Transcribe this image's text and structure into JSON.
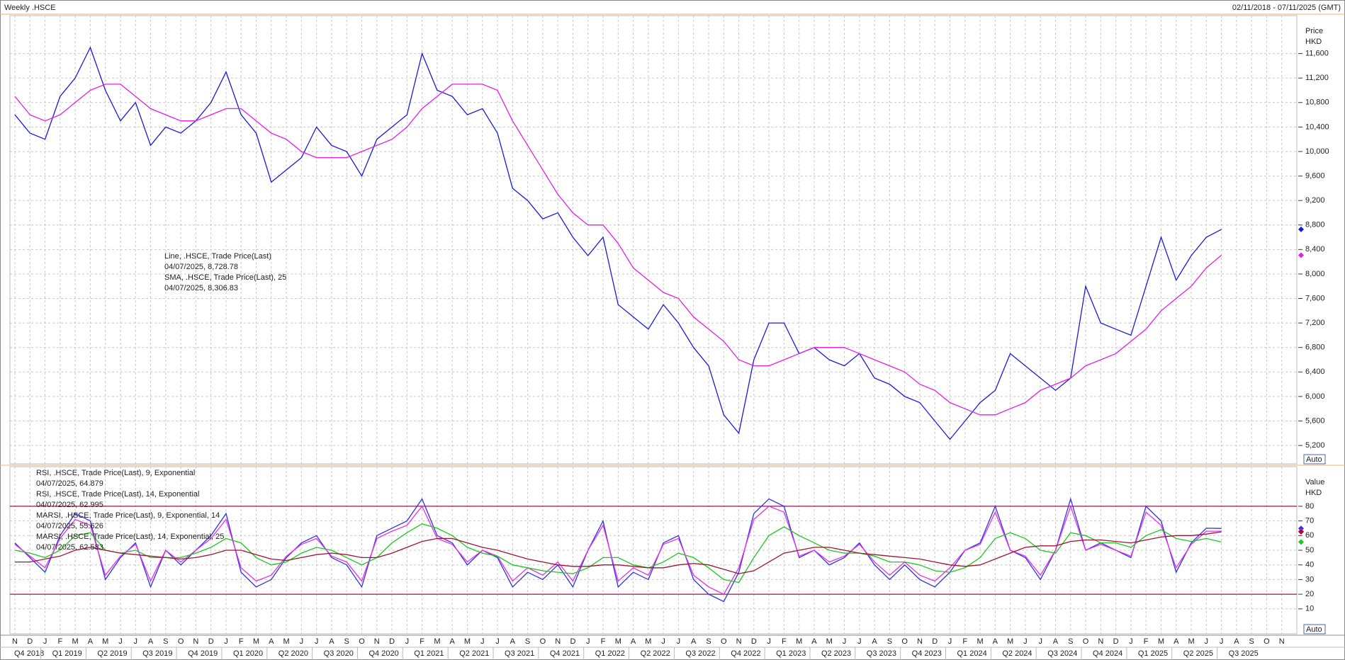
{
  "header": {
    "title": "Weekly .HSCE",
    "range": "02/11/2018 - 07/11/2025 (GMT)"
  },
  "x_axis": {
    "months": [
      "N",
      "D",
      "J",
      "F",
      "M",
      "A",
      "M",
      "J",
      "J",
      "A",
      "S",
      "O",
      "N",
      "D",
      "J",
      "F",
      "M",
      "A",
      "M",
      "J",
      "J",
      "A",
      "S",
      "O",
      "N",
      "D",
      "J",
      "F",
      "M",
      "A",
      "M",
      "J",
      "J",
      "A",
      "S",
      "O",
      "N",
      "D",
      "J",
      "F",
      "M",
      "A",
      "M",
      "J",
      "J",
      "A",
      "S",
      "O",
      "N",
      "D",
      "J",
      "F",
      "M",
      "A",
      "M",
      "J",
      "J",
      "A",
      "S",
      "O",
      "N",
      "D",
      "J",
      "F",
      "M",
      "A",
      "M",
      "J",
      "J",
      "A",
      "S",
      "O",
      "N",
      "D",
      "J",
      "F",
      "M",
      "A",
      "M",
      "J",
      "J",
      "A",
      "S",
      "O",
      "N"
    ],
    "quarters": [
      "Q4 2018",
      "Q1 2019",
      "Q2 2019",
      "Q3 2019",
      "Q4 2019",
      "Q1 2020",
      "Q2 2020",
      "Q3 2020",
      "Q4 2020",
      "Q1 2021",
      "Q2 2021",
      "Q3 2021",
      "Q4 2021",
      "Q1 2022",
      "Q2 2022",
      "Q3 2022",
      "Q4 2022",
      "Q1 2023",
      "Q2 2023",
      "Q3 2023",
      "Q4 2023",
      "Q1 2024",
      "Q2 2024",
      "Q3 2024",
      "Q4 2024",
      "Q1 2025",
      "Q2 2025",
      "Q3 2025"
    ]
  },
  "chart_data": [
    {
      "type": "line",
      "axis_label": [
        "Price",
        "HKD"
      ],
      "button": "Auto",
      "grid": true,
      "xlim": [
        "2018-11",
        "2025-12"
      ],
      "ylim": [
        4900,
        12220
      ],
      "yticks": [
        {
          "value": 5200,
          "label": "5,200"
        },
        {
          "value": 5600,
          "label": "5,600"
        },
        {
          "value": 6000,
          "label": "6,000"
        },
        {
          "value": 6400,
          "label": "6,400"
        },
        {
          "value": 6800,
          "label": "6,800"
        },
        {
          "value": 7200,
          "label": "7,200"
        },
        {
          "value": 7600,
          "label": "7,600"
        },
        {
          "value": 8000,
          "label": "8,000"
        },
        {
          "value": 8400,
          "label": "8,400"
        },
        {
          "value": 8800,
          "label": "8,800"
        },
        {
          "value": 9200,
          "label": "9,200"
        },
        {
          "value": 9600,
          "label": "9,600"
        },
        {
          "value": 10000,
          "label": "10,000"
        },
        {
          "value": 10400,
          "label": "10,400"
        },
        {
          "value": 10800,
          "label": "10,800"
        },
        {
          "value": 11200,
          "label": "11,200"
        },
        {
          "value": 11600,
          "label": "11,600"
        }
      ],
      "x": [
        "2018-11",
        "2018-12",
        "2019-01",
        "2019-02",
        "2019-03",
        "2019-04",
        "2019-05",
        "2019-06",
        "2019-07",
        "2019-08",
        "2019-09",
        "2019-10",
        "2019-11",
        "2019-12",
        "2020-01",
        "2020-02",
        "2020-03",
        "2020-04",
        "2020-05",
        "2020-06",
        "2020-07",
        "2020-08",
        "2020-09",
        "2020-10",
        "2020-11",
        "2020-12",
        "2021-01",
        "2021-02",
        "2021-03",
        "2021-04",
        "2021-05",
        "2021-06",
        "2021-07",
        "2021-08",
        "2021-09",
        "2021-10",
        "2021-11",
        "2021-12",
        "2022-01",
        "2022-02",
        "2022-03",
        "2022-04",
        "2022-05",
        "2022-06",
        "2022-07",
        "2022-08",
        "2022-09",
        "2022-10",
        "2022-11",
        "2022-12",
        "2023-01",
        "2023-02",
        "2023-03",
        "2023-04",
        "2023-05",
        "2023-06",
        "2023-07",
        "2023-08",
        "2023-09",
        "2023-10",
        "2023-11",
        "2023-12",
        "2024-01",
        "2024-02",
        "2024-03",
        "2024-04",
        "2024-05",
        "2024-06",
        "2024-07",
        "2024-08",
        "2024-09",
        "2024-10",
        "2024-11",
        "2024-12",
        "2025-01",
        "2025-02",
        "2025-03",
        "2025-04",
        "2025-05",
        "2025-06",
        "2025-07"
      ],
      "series": [
        {
          "name": "Line, .HSCE, Trade Price(Last)",
          "legend_value": "04/07/2025, 8,728.78",
          "color": "#1a1adb",
          "values": [
            10600,
            10300,
            10200,
            10900,
            11200,
            11700,
            11000,
            10500,
            10800,
            10100,
            10400,
            10300,
            10500,
            10800,
            11300,
            10600,
            10300,
            9500,
            9700,
            9900,
            10400,
            10100,
            10000,
            9600,
            10200,
            10400,
            10600,
            11600,
            11000,
            10900,
            10600,
            10700,
            10300,
            9400,
            9200,
            8900,
            9000,
            8600,
            8300,
            8600,
            7500,
            7300,
            7100,
            7500,
            7200,
            6800,
            6500,
            5700,
            5400,
            6600,
            7200,
            7200,
            6700,
            6800,
            6600,
            6500,
            6700,
            6300,
            6200,
            6000,
            5900,
            5600,
            5300,
            5600,
            5900,
            6100,
            6700,
            6500,
            6300,
            6100,
            6300,
            7800,
            7200,
            7100,
            7000,
            7800,
            8600,
            7900,
            8300,
            8600,
            8728.78
          ]
        },
        {
          "name": "SMA, .HSCE, Trade Price(Last),  25",
          "legend_value": "04/07/2025, 8,306.83",
          "color": "#e61ee6",
          "values": [
            10900,
            10600,
            10500,
            10600,
            10800,
            11000,
            11100,
            11100,
            10900,
            10700,
            10600,
            10500,
            10500,
            10600,
            10700,
            10700,
            10500,
            10300,
            10200,
            10000,
            9900,
            9900,
            9900,
            10000,
            10100,
            10200,
            10400,
            10700,
            10900,
            11100,
            11100,
            11100,
            11000,
            10500,
            10100,
            9700,
            9300,
            9000,
            8800,
            8800,
            8500,
            8100,
            7900,
            7700,
            7600,
            7300,
            7100,
            6900,
            6600,
            6500,
            6500,
            6600,
            6700,
            6800,
            6800,
            6800,
            6700,
            6600,
            6500,
            6400,
            6200,
            6100,
            5900,
            5800,
            5700,
            5700,
            5800,
            5900,
            6100,
            6200,
            6300,
            6500,
            6600,
            6700,
            6900,
            7100,
            7400,
            7600,
            7800,
            8100,
            8306.83
          ]
        }
      ]
    },
    {
      "type": "line",
      "axis_label": [
        "Value",
        "HKD"
      ],
      "button": "Auto",
      "grid": true,
      "xlim": [
        "2018-11",
        "2025-12"
      ],
      "ylim": [
        -7,
        107
      ],
      "levels": [
        20,
        80
      ],
      "level_color": "#a01450",
      "yticks": [
        10,
        20,
        30,
        40,
        50,
        60,
        70,
        80
      ],
      "x": [
        "2018-11",
        "2018-12",
        "2019-01",
        "2019-02",
        "2019-03",
        "2019-04",
        "2019-05",
        "2019-06",
        "2019-07",
        "2019-08",
        "2019-09",
        "2019-10",
        "2019-11",
        "2019-12",
        "2020-01",
        "2020-02",
        "2020-03",
        "2020-04",
        "2020-05",
        "2020-06",
        "2020-07",
        "2020-08",
        "2020-09",
        "2020-10",
        "2020-11",
        "2020-12",
        "2021-01",
        "2021-02",
        "2021-03",
        "2021-04",
        "2021-05",
        "2021-06",
        "2021-07",
        "2021-08",
        "2021-09",
        "2021-10",
        "2021-11",
        "2021-12",
        "2022-01",
        "2022-02",
        "2022-03",
        "2022-04",
        "2022-05",
        "2022-06",
        "2022-07",
        "2022-08",
        "2022-09",
        "2022-10",
        "2022-11",
        "2022-12",
        "2023-01",
        "2023-02",
        "2023-03",
        "2023-04",
        "2023-05",
        "2023-06",
        "2023-07",
        "2023-08",
        "2023-09",
        "2023-10",
        "2023-11",
        "2023-12",
        "2024-01",
        "2024-02",
        "2024-03",
        "2024-04",
        "2024-05",
        "2024-06",
        "2024-07",
        "2024-08",
        "2024-09",
        "2024-10",
        "2024-11",
        "2024-12",
        "2025-01",
        "2025-02",
        "2025-03",
        "2025-04",
        "2025-05",
        "2025-06",
        "2025-07"
      ],
      "series": [
        {
          "name": "RSI, .HSCE, Trade Price(Last),  9, Exponential",
          "legend_value": "04/07/2025, 64.879",
          "color": "#3232e6",
          "values": [
            55,
            45,
            35,
            60,
            75,
            70,
            30,
            45,
            55,
            25,
            50,
            40,
            50,
            60,
            75,
            35,
            25,
            30,
            45,
            55,
            60,
            45,
            40,
            25,
            60,
            65,
            70,
            85,
            60,
            55,
            40,
            50,
            45,
            25,
            35,
            30,
            40,
            25,
            50,
            70,
            25,
            35,
            30,
            55,
            60,
            30,
            20,
            15,
            35,
            75,
            85,
            80,
            45,
            50,
            40,
            45,
            55,
            40,
            30,
            40,
            30,
            25,
            35,
            50,
            55,
            80,
            50,
            45,
            30,
            50,
            85,
            50,
            55,
            50,
            45,
            80,
            70,
            35,
            55,
            65,
            64.879
          ]
        },
        {
          "name": "RSI, .HSCE, Trade Price(Last),  14, Exponential",
          "legend_value": "04/07/2025, 62.995",
          "color": "#e632e6",
          "values": [
            54,
            46,
            38,
            58,
            71,
            67,
            33,
            46,
            54,
            29,
            50,
            42,
            50,
            58,
            71,
            38,
            29,
            33,
            46,
            54,
            58,
            46,
            42,
            29,
            58,
            63,
            67,
            80,
            58,
            54,
            42,
            50,
            46,
            29,
            38,
            33,
            42,
            29,
            50,
            67,
            29,
            38,
            33,
            54,
            58,
            33,
            25,
            20,
            38,
            71,
            80,
            76,
            46,
            50,
            42,
            46,
            54,
            42,
            33,
            42,
            33,
            29,
            38,
            50,
            54,
            76,
            50,
            46,
            33,
            50,
            80,
            50,
            54,
            50,
            46,
            76,
            67,
            38,
            54,
            63,
            62.995
          ]
        },
        {
          "name": "MARSI, .HSCE, Trade Price(Last),  9, Exponential, 14",
          "legend_value": "04/07/2025, 55.626",
          "color": "#1ec81e",
          "values": [
            50,
            48,
            45,
            50,
            60,
            62,
            50,
            48,
            50,
            45,
            45,
            45,
            48,
            52,
            58,
            55,
            45,
            40,
            42,
            48,
            52,
            50,
            45,
            40,
            45,
            55,
            62,
            68,
            65,
            60,
            52,
            48,
            46,
            40,
            38,
            36,
            35,
            34,
            38,
            45,
            45,
            40,
            38,
            42,
            48,
            45,
            38,
            30,
            28,
            45,
            60,
            66,
            60,
            55,
            50,
            48,
            48,
            46,
            42,
            42,
            40,
            36,
            35,
            38,
            45,
            58,
            62,
            58,
            50,
            48,
            62,
            60,
            55,
            55,
            52,
            60,
            64,
            58,
            56,
            58,
            55.626
          ]
        },
        {
          "name": "MARSI, .HSCE, Trade Price(Last),  14, Exponential, 25",
          "legend_value": "04/07/2025, 62.583",
          "color": "#a01432",
          "values": [
            42,
            42,
            44,
            46,
            50,
            52,
            50,
            48,
            47,
            46,
            45,
            44,
            45,
            47,
            50,
            50,
            47,
            44,
            43,
            45,
            47,
            48,
            47,
            45,
            45,
            48,
            52,
            56,
            58,
            58,
            55,
            52,
            50,
            47,
            44,
            42,
            40,
            39,
            39,
            40,
            40,
            39,
            38,
            38,
            40,
            41,
            40,
            37,
            34,
            36,
            42,
            48,
            50,
            52,
            52,
            50,
            48,
            47,
            46,
            45,
            44,
            42,
            40,
            39,
            40,
            44,
            48,
            52,
            53,
            53,
            56,
            57,
            57,
            56,
            55,
            57,
            59,
            60,
            60,
            61,
            62.583
          ]
        }
      ]
    }
  ]
}
